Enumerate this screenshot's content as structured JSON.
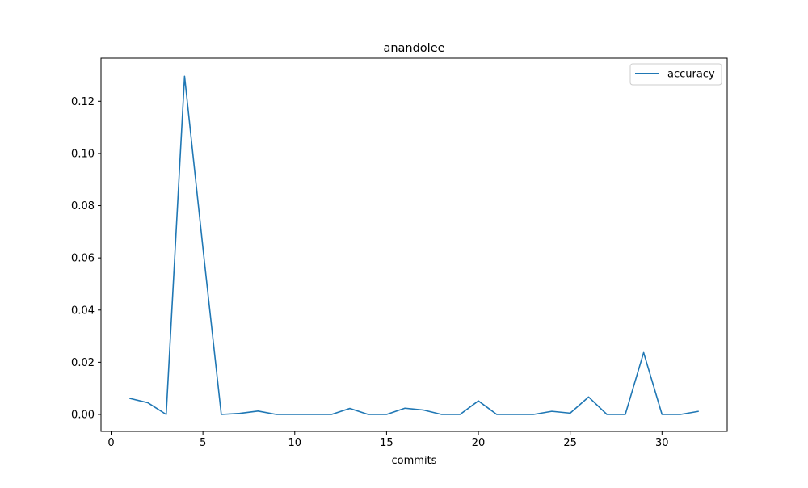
{
  "chart_data": {
    "type": "line",
    "title": "anandolee",
    "xlabel": "commits",
    "ylabel": "",
    "xlim": [
      -0.55,
      33.55
    ],
    "ylim": [
      -0.0065,
      0.1365
    ],
    "xticks": [
      0,
      5,
      10,
      15,
      20,
      25,
      30
    ],
    "yticks": [
      0.0,
      0.02,
      0.04,
      0.06,
      0.08,
      0.1,
      0.12
    ],
    "xtick_labels": [
      "0",
      "5",
      "10",
      "15",
      "20",
      "25",
      "30"
    ],
    "ytick_labels": [
      "0.00",
      "0.02",
      "0.04",
      "0.06",
      "0.08",
      "0.10",
      "0.12"
    ],
    "grid": false,
    "legend_position": "upper right",
    "series": [
      {
        "name": "accuracy",
        "color": "#1f77b4",
        "x": [
          1,
          2,
          3,
          4,
          5,
          6,
          7,
          8,
          9,
          10,
          11,
          12,
          13,
          14,
          15,
          16,
          17,
          18,
          19,
          20,
          21,
          22,
          23,
          24,
          25,
          26,
          27,
          28,
          29,
          30,
          31,
          32
        ],
        "y": [
          0.0062,
          0.0045,
          0.0,
          0.1296,
          0.0638,
          0.0,
          0.0004,
          0.0013,
          0.0,
          0.0,
          0.0,
          0.0,
          0.0023,
          0.0,
          0.0,
          0.0024,
          0.0017,
          0.0,
          0.0,
          0.0052,
          0.0,
          0.0,
          0.0,
          0.0012,
          0.0005,
          0.0067,
          0.0,
          0.0,
          0.0237,
          0.0,
          0.0,
          0.0012
        ]
      }
    ]
  }
}
